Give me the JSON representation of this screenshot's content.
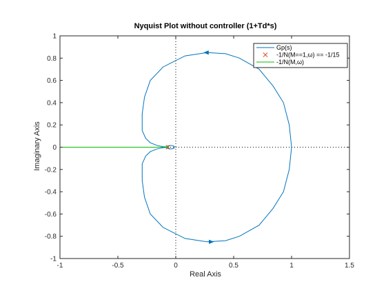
{
  "chart_data": {
    "type": "line",
    "title": "Nyquist Plot without controller (1+Td*s)",
    "xlabel": "Real Axis",
    "ylabel": "Imaginary Axis",
    "xlim": [
      -1,
      1.5
    ],
    "ylim": [
      -1,
      1
    ],
    "xticks": [
      -1,
      -0.5,
      0,
      0.5,
      1,
      1.5
    ],
    "xtick_labels": [
      "-1",
      "-0.5",
      "0",
      "0.5",
      "1",
      "1.5"
    ],
    "yticks": [
      -1,
      -0.8,
      -0.6,
      -0.4,
      -0.2,
      0,
      0.2,
      0.4,
      0.6,
      0.8,
      1
    ],
    "ytick_labels": [
      "-1",
      "-0.8",
      "-0.6",
      "-0.4",
      "-0.2",
      "0",
      "0.2",
      "0.4",
      "0.6",
      "0.8",
      "1"
    ],
    "grid": false,
    "legend_position": "top-right",
    "reference_lines": {
      "vertical_x": 0,
      "horizontal_y": 0,
      "style": "dotted",
      "color": "#000000"
    },
    "series": [
      {
        "name": "Gp(s)",
        "color": "#0072bd",
        "style": "solid",
        "x": [
          1.0,
          0.98,
          0.93,
          0.84,
          0.72,
          0.55,
          0.43,
          0.27,
          0.08,
          -0.11,
          -0.22,
          -0.27,
          -0.29,
          -0.29,
          -0.26,
          -0.22,
          -0.16,
          -0.11,
          -0.085,
          -0.07,
          -0.065,
          -0.07,
          -0.085,
          -0.11,
          -0.16,
          -0.22,
          -0.26,
          -0.29,
          -0.29,
          -0.27,
          -0.22,
          -0.11,
          0.08,
          0.27,
          0.43,
          0.55,
          0.72,
          0.84,
          0.93,
          0.98,
          1.0
        ],
        "y": [
          0.0,
          0.2,
          0.4,
          0.55,
          0.7,
          0.8,
          0.84,
          0.85,
          0.82,
          0.72,
          0.6,
          0.45,
          0.3,
          0.15,
          0.08,
          0.04,
          0.015,
          0.005,
          0.003,
          0.0,
          0.0,
          0.0,
          -0.003,
          -0.005,
          -0.015,
          -0.04,
          -0.08,
          -0.15,
          -0.3,
          -0.45,
          -0.6,
          -0.72,
          -0.82,
          -0.85,
          -0.84,
          -0.8,
          -0.7,
          -0.55,
          -0.4,
          -0.2,
          0.0
        ],
        "arrows": [
          {
            "x": 0.27,
            "y": 0.85,
            "direction": "left"
          },
          {
            "x": 0.3,
            "y": -0.85,
            "direction": "right"
          }
        ],
        "inner_loop": {
          "cx": -0.045,
          "cy": 0.0,
          "rx": 0.035,
          "ry": 0.01
        }
      },
      {
        "name": "-1/N(M==1,ω) == -1/15",
        "color": "#d95319",
        "marker": "x",
        "style": "none",
        "x": [
          -0.0667
        ],
        "y": [
          0.0
        ]
      },
      {
        "name": "-1/N(M,ω)",
        "color": "#00bf00",
        "style": "solid",
        "x": [
          -1.0,
          -0.06
        ],
        "y": [
          0.0,
          0.0
        ]
      }
    ]
  }
}
